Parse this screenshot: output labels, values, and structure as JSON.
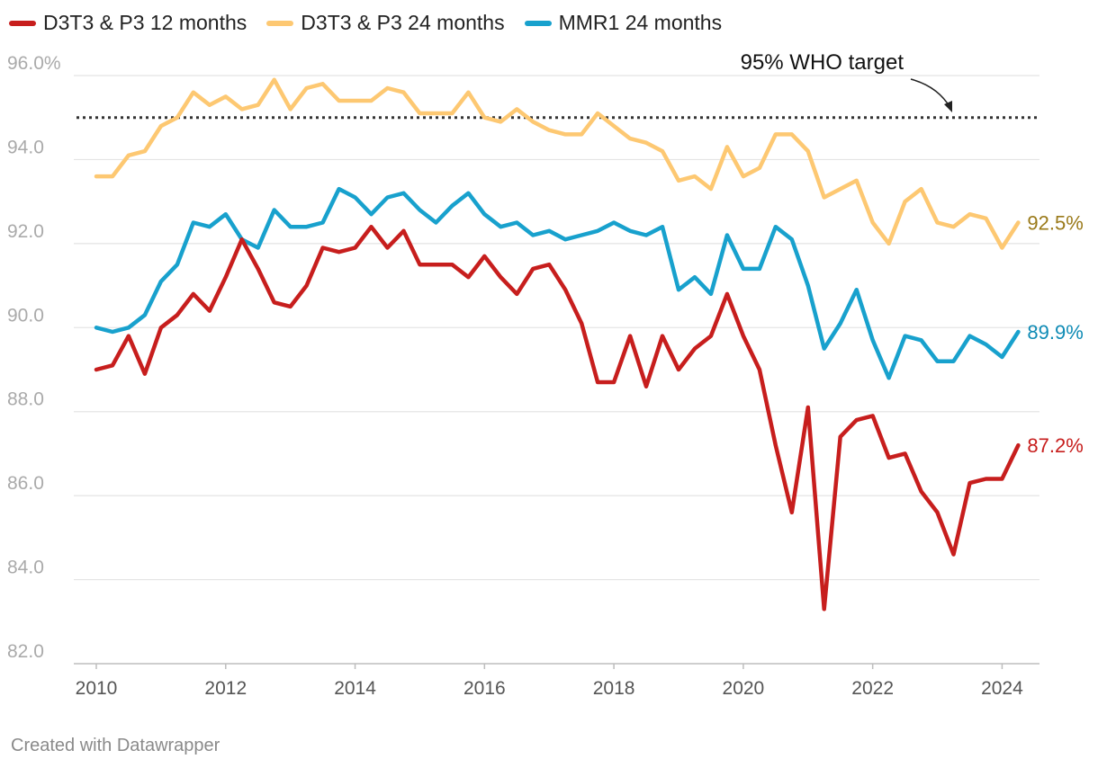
{
  "chart_data": {
    "type": "line",
    "title": "",
    "xlabel": "",
    "ylabel": "",
    "ylim": [
      82,
      96.2
    ],
    "xlim": [
      2010,
      2024.3
    ],
    "yticks": [
      82,
      84,
      86,
      88,
      90,
      92,
      94,
      96
    ],
    "ytick_labels": [
      "82.0",
      "84.0",
      "86.0",
      "88.0",
      "90.0",
      "92.0",
      "94.0",
      "96.0%"
    ],
    "xticks": [
      2010,
      2012,
      2014,
      2016,
      2018,
      2020,
      2022,
      2024
    ],
    "xtick_labels": [
      "2010",
      "2012",
      "2014",
      "2016",
      "2018",
      "2020",
      "2022",
      "2024"
    ],
    "grid": true,
    "legend_position": "top-left",
    "x_start": 2010,
    "x_step": 0.25,
    "reference_line": {
      "value": 95,
      "label": "95% WHO target"
    },
    "series": [
      {
        "name": "D3T3 & P3 12 months",
        "color": "#c71e1d",
        "label_color": "#c71e1d",
        "end_label": "87.2%",
        "values": [
          89.0,
          89.1,
          89.8,
          88.9,
          90.0,
          90.3,
          90.8,
          90.4,
          91.2,
          92.1,
          91.4,
          90.6,
          90.5,
          91.0,
          91.9,
          91.8,
          91.9,
          92.4,
          91.9,
          92.3,
          91.5,
          91.5,
          91.5,
          91.2,
          91.7,
          91.2,
          90.8,
          91.4,
          91.5,
          90.9,
          90.1,
          88.7,
          88.7,
          89.8,
          88.6,
          89.8,
          89.0,
          89.5,
          89.8,
          90.8,
          89.8,
          89.0,
          87.2,
          85.6,
          88.1,
          83.3,
          87.4,
          87.8,
          87.9,
          86.9,
          87.0,
          86.1,
          85.6,
          84.6,
          86.3,
          86.4,
          86.4,
          87.2
        ]
      },
      {
        "name": "D3T3 & P3 24 months",
        "color": "#fdc872",
        "label_color": "#9a7a1a",
        "end_label": "92.5%",
        "values": [
          93.6,
          93.6,
          94.1,
          94.2,
          94.8,
          95.0,
          95.6,
          95.3,
          95.5,
          95.2,
          95.3,
          95.9,
          95.2,
          95.7,
          95.8,
          95.4,
          95.4,
          95.4,
          95.7,
          95.6,
          95.1,
          95.1,
          95.1,
          95.6,
          95.0,
          94.9,
          95.2,
          94.9,
          94.7,
          94.6,
          94.6,
          95.1,
          94.8,
          94.5,
          94.4,
          94.2,
          93.5,
          93.6,
          93.3,
          94.3,
          93.6,
          93.8,
          94.6,
          94.6,
          94.2,
          93.1,
          93.3,
          93.5,
          92.5,
          92.0,
          93.0,
          93.3,
          92.5,
          92.4,
          92.7,
          92.6,
          91.9,
          92.5
        ]
      },
      {
        "name": "MMR1 24 months",
        "color": "#18a1cd",
        "label_color": "#0f8bb5",
        "end_label": "89.9%",
        "values": [
          90.0,
          89.9,
          90.0,
          90.3,
          91.1,
          91.5,
          92.5,
          92.4,
          92.7,
          92.1,
          91.9,
          92.8,
          92.4,
          92.4,
          92.5,
          93.3,
          93.1,
          92.7,
          93.1,
          93.2,
          92.8,
          92.5,
          92.9,
          93.2,
          92.7,
          92.4,
          92.5,
          92.2,
          92.3,
          92.1,
          92.2,
          92.3,
          92.5,
          92.3,
          92.2,
          92.4,
          90.9,
          91.2,
          90.8,
          92.2,
          91.4,
          91.4,
          92.4,
          92.1,
          91.0,
          89.5,
          90.1,
          90.9,
          89.7,
          88.8,
          89.8,
          89.7,
          89.2,
          89.2,
          89.8,
          89.6,
          89.3,
          89.9
        ]
      }
    ]
  },
  "footer": {
    "credit": "Created with Datawrapper"
  }
}
